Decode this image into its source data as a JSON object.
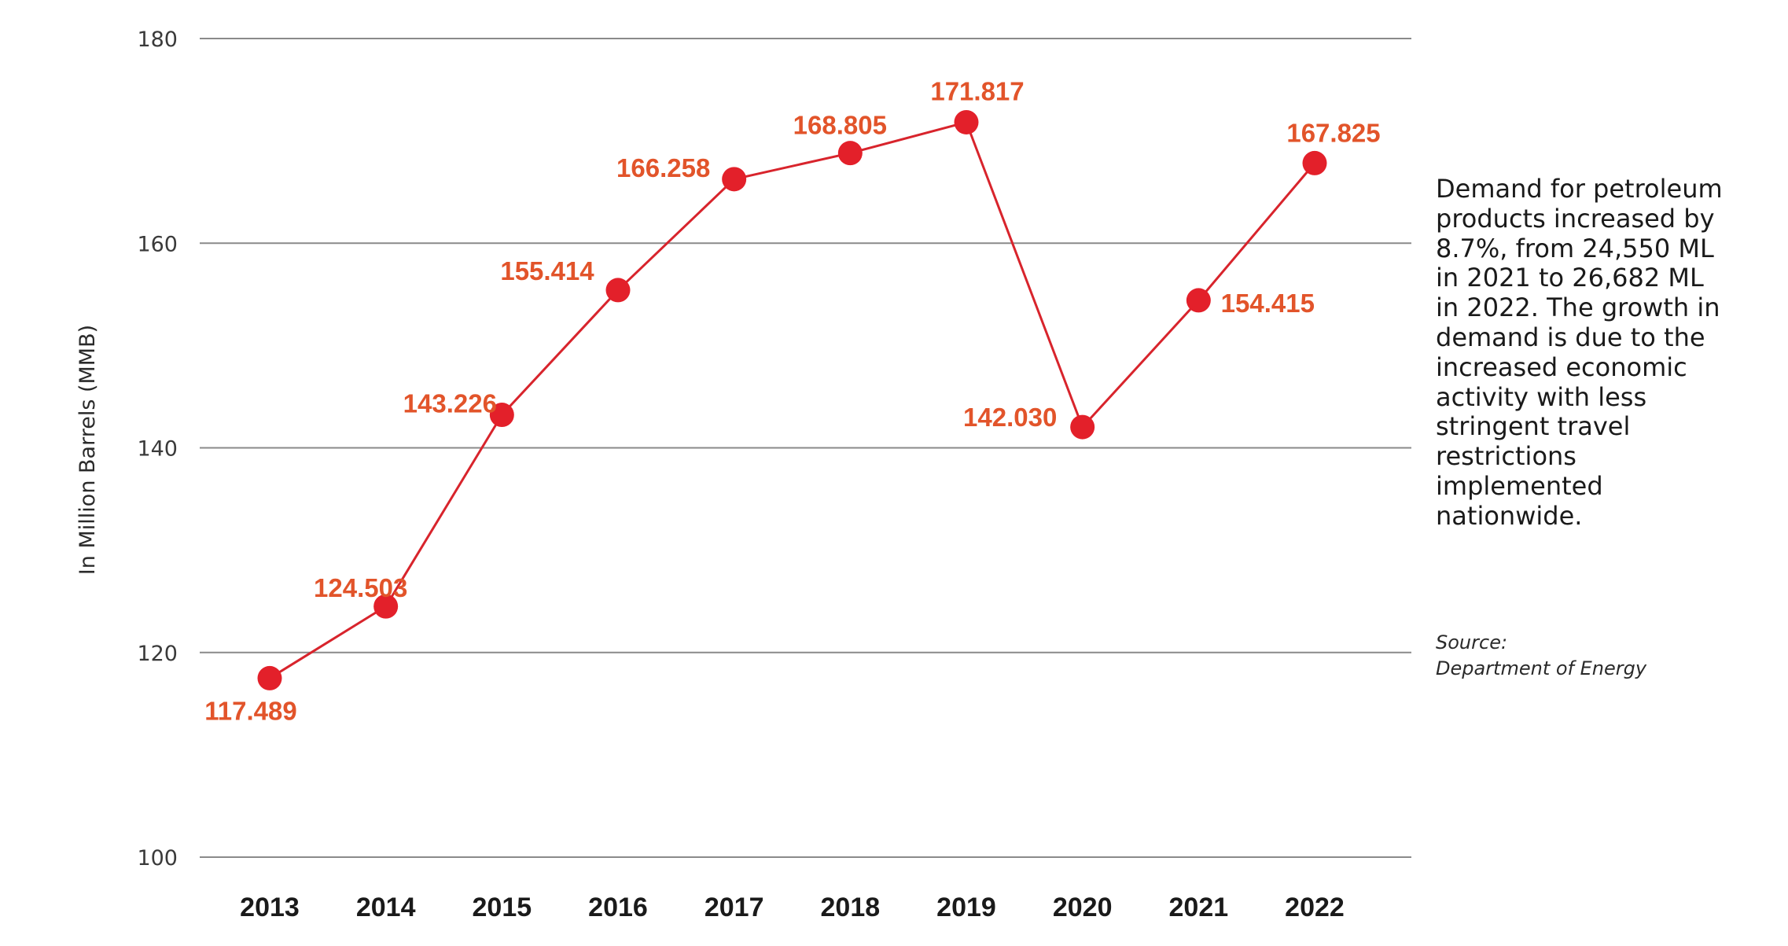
{
  "chart_data": {
    "type": "line",
    "x": [
      "2013",
      "2014",
      "2015",
      "2016",
      "2017",
      "2018",
      "2019",
      "2020",
      "2021",
      "2022"
    ],
    "series": [
      {
        "values": [
          117.489,
          124.503,
          143.226,
          155.414,
          166.258,
          168.805,
          171.817,
          142.03,
          154.415,
          167.825
        ],
        "labels": [
          "117.489",
          "124.503",
          "143.226",
          "155.414",
          "166.258",
          "168.805",
          "171.817",
          "142.030",
          "154.415",
          "167.825"
        ]
      }
    ],
    "ylabel": "In Million Barrels (MMB)",
    "ylim": [
      100,
      180
    ],
    "yticks": [
      100,
      120,
      140,
      160,
      180
    ],
    "grid": true,
    "colors": {
      "line": "#d8242c",
      "marker": "#e3202a",
      "label": "#e2542a",
      "grid": "#8a8a8a"
    }
  },
  "note": "Demand for petroleum\nproducts increased by\n8.7%, from 24,550 ML\nin 2021 to 26,682 ML\nin 2022. The growth in\ndemand is due to the\nincreased economic\nactivity with less\nstringent travel\nrestrictions\nimplemented\nnationwide.",
  "source": {
    "label": "Source:",
    "text": "Department of Energy"
  }
}
